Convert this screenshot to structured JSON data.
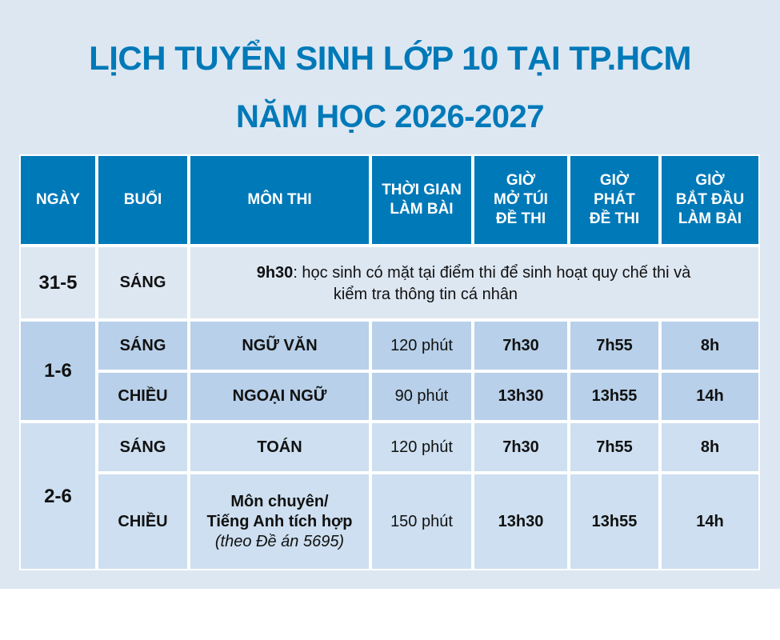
{
  "title": "LỊCH TUYỂN SINH LỚP 10 TẠI TP.HCM",
  "subtitle": "NĂM HỌC 2026-2027",
  "colors": {
    "header": "#0079b8",
    "title": "#0079b8",
    "background": "#dde7f2"
  },
  "headers": [
    "NGÀY",
    "BUỔI",
    "MÔN THI",
    "THỜI GIAN LÀM BÀI",
    "GIỜ MỞ TÚI ĐỀ THI",
    "GIỜ PHÁT ĐỀ THI",
    "GIỜ BẮT ĐẦU LÀM BÀI"
  ],
  "header_lines": {
    "duration": [
      "THỜI GIAN",
      "LÀM BÀI"
    ],
    "open": [
      "GIỜ",
      "MỞ TÚI",
      "ĐỀ THI"
    ],
    "hand": [
      "GIỜ",
      "PHÁT",
      "ĐỀ THI"
    ],
    "start": [
      "GIỜ",
      "BẮT ĐẦU",
      "LÀM BÀI"
    ]
  },
  "row_31_5": {
    "date": "31-5",
    "session": "SÁNG",
    "time": "9h30",
    "note_line1": ": học sinh có mặt tại điểm thi để sinh hoạt quy chế thi và",
    "note_line2": "kiểm tra thông tin cá nhân"
  },
  "days": [
    {
      "date": "1-6",
      "rows": [
        {
          "session": "SÁNG",
          "subject": "NGỮ VĂN",
          "duration": "120 phút",
          "open": "7h30",
          "hand": "7h55",
          "start": "8h"
        },
        {
          "session": "CHIỀU",
          "subject": "NGOẠI NGỮ",
          "duration": "90 phút",
          "open": "13h30",
          "hand": "13h55",
          "start": "14h"
        }
      ]
    },
    {
      "date": "2-6",
      "rows": [
        {
          "session": "SÁNG",
          "subject": "TOÁN",
          "duration": "120 phút",
          "open": "7h30",
          "hand": "7h55",
          "start": "8h"
        },
        {
          "session": "CHIỀU",
          "subject_line1": "Môn chuyên/",
          "subject_line2": "Tiếng Anh tích hợp",
          "subject_note": "(theo Đề án 5695)",
          "duration": "150 phút",
          "open": "13h30",
          "hand": "13h55",
          "start": "14h"
        }
      ]
    }
  ]
}
